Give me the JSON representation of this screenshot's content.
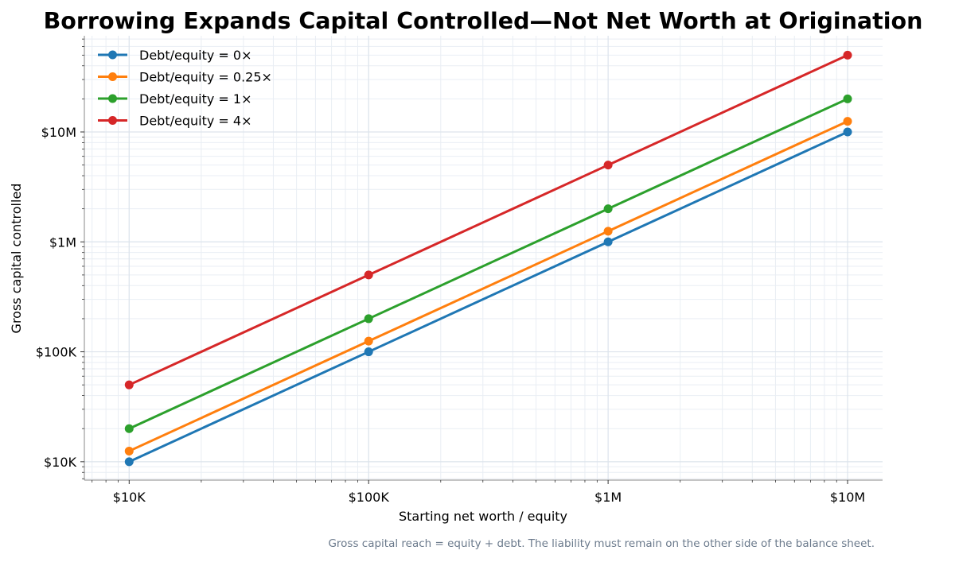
{
  "chart_data": {
    "type": "line",
    "title": "Borrowing Expands Capital Controlled—Not Net Worth at Origination",
    "xlabel": "Starting net worth / equity",
    "ylabel": "Gross capital controlled",
    "footnote": "Gross capital reach = equity + debt. The liability must remain on the other side of the balance sheet.",
    "x_scale": "log",
    "y_scale": "log",
    "x": [
      10000,
      100000,
      1000000,
      10000000
    ],
    "x_ticks": [
      {
        "value": 10000,
        "label": "$10K"
      },
      {
        "value": 100000,
        "label": "$100K"
      },
      {
        "value": 1000000,
        "label": "$1M"
      },
      {
        "value": 10000000,
        "label": "$10M"
      }
    ],
    "y_ticks": [
      {
        "value": 10000,
        "label": "$10K"
      },
      {
        "value": 100000,
        "label": "$100K"
      },
      {
        "value": 1000000,
        "label": "$1M"
      },
      {
        "value": 10000000,
        "label": "$10M"
      }
    ],
    "xlim": [
      6500,
      14000000
    ],
    "ylim": [
      6800,
      75000000
    ],
    "grid": true,
    "legend_position": "top-left",
    "series": [
      {
        "name": "Debt/equity = 0×",
        "color": "#1f77b4",
        "values": [
          10000,
          100000,
          1000000,
          10000000
        ]
      },
      {
        "name": "Debt/equity = 0.25×",
        "color": "#ff7f0e",
        "values": [
          12500,
          125000,
          1250000,
          12500000
        ]
      },
      {
        "name": "Debt/equity = 1×",
        "color": "#2ca02c",
        "values": [
          20000,
          200000,
          2000000,
          20000000
        ]
      },
      {
        "name": "Debt/equity = 4×",
        "color": "#d62728",
        "values": [
          50000,
          500000,
          5000000,
          50000000
        ]
      }
    ]
  }
}
